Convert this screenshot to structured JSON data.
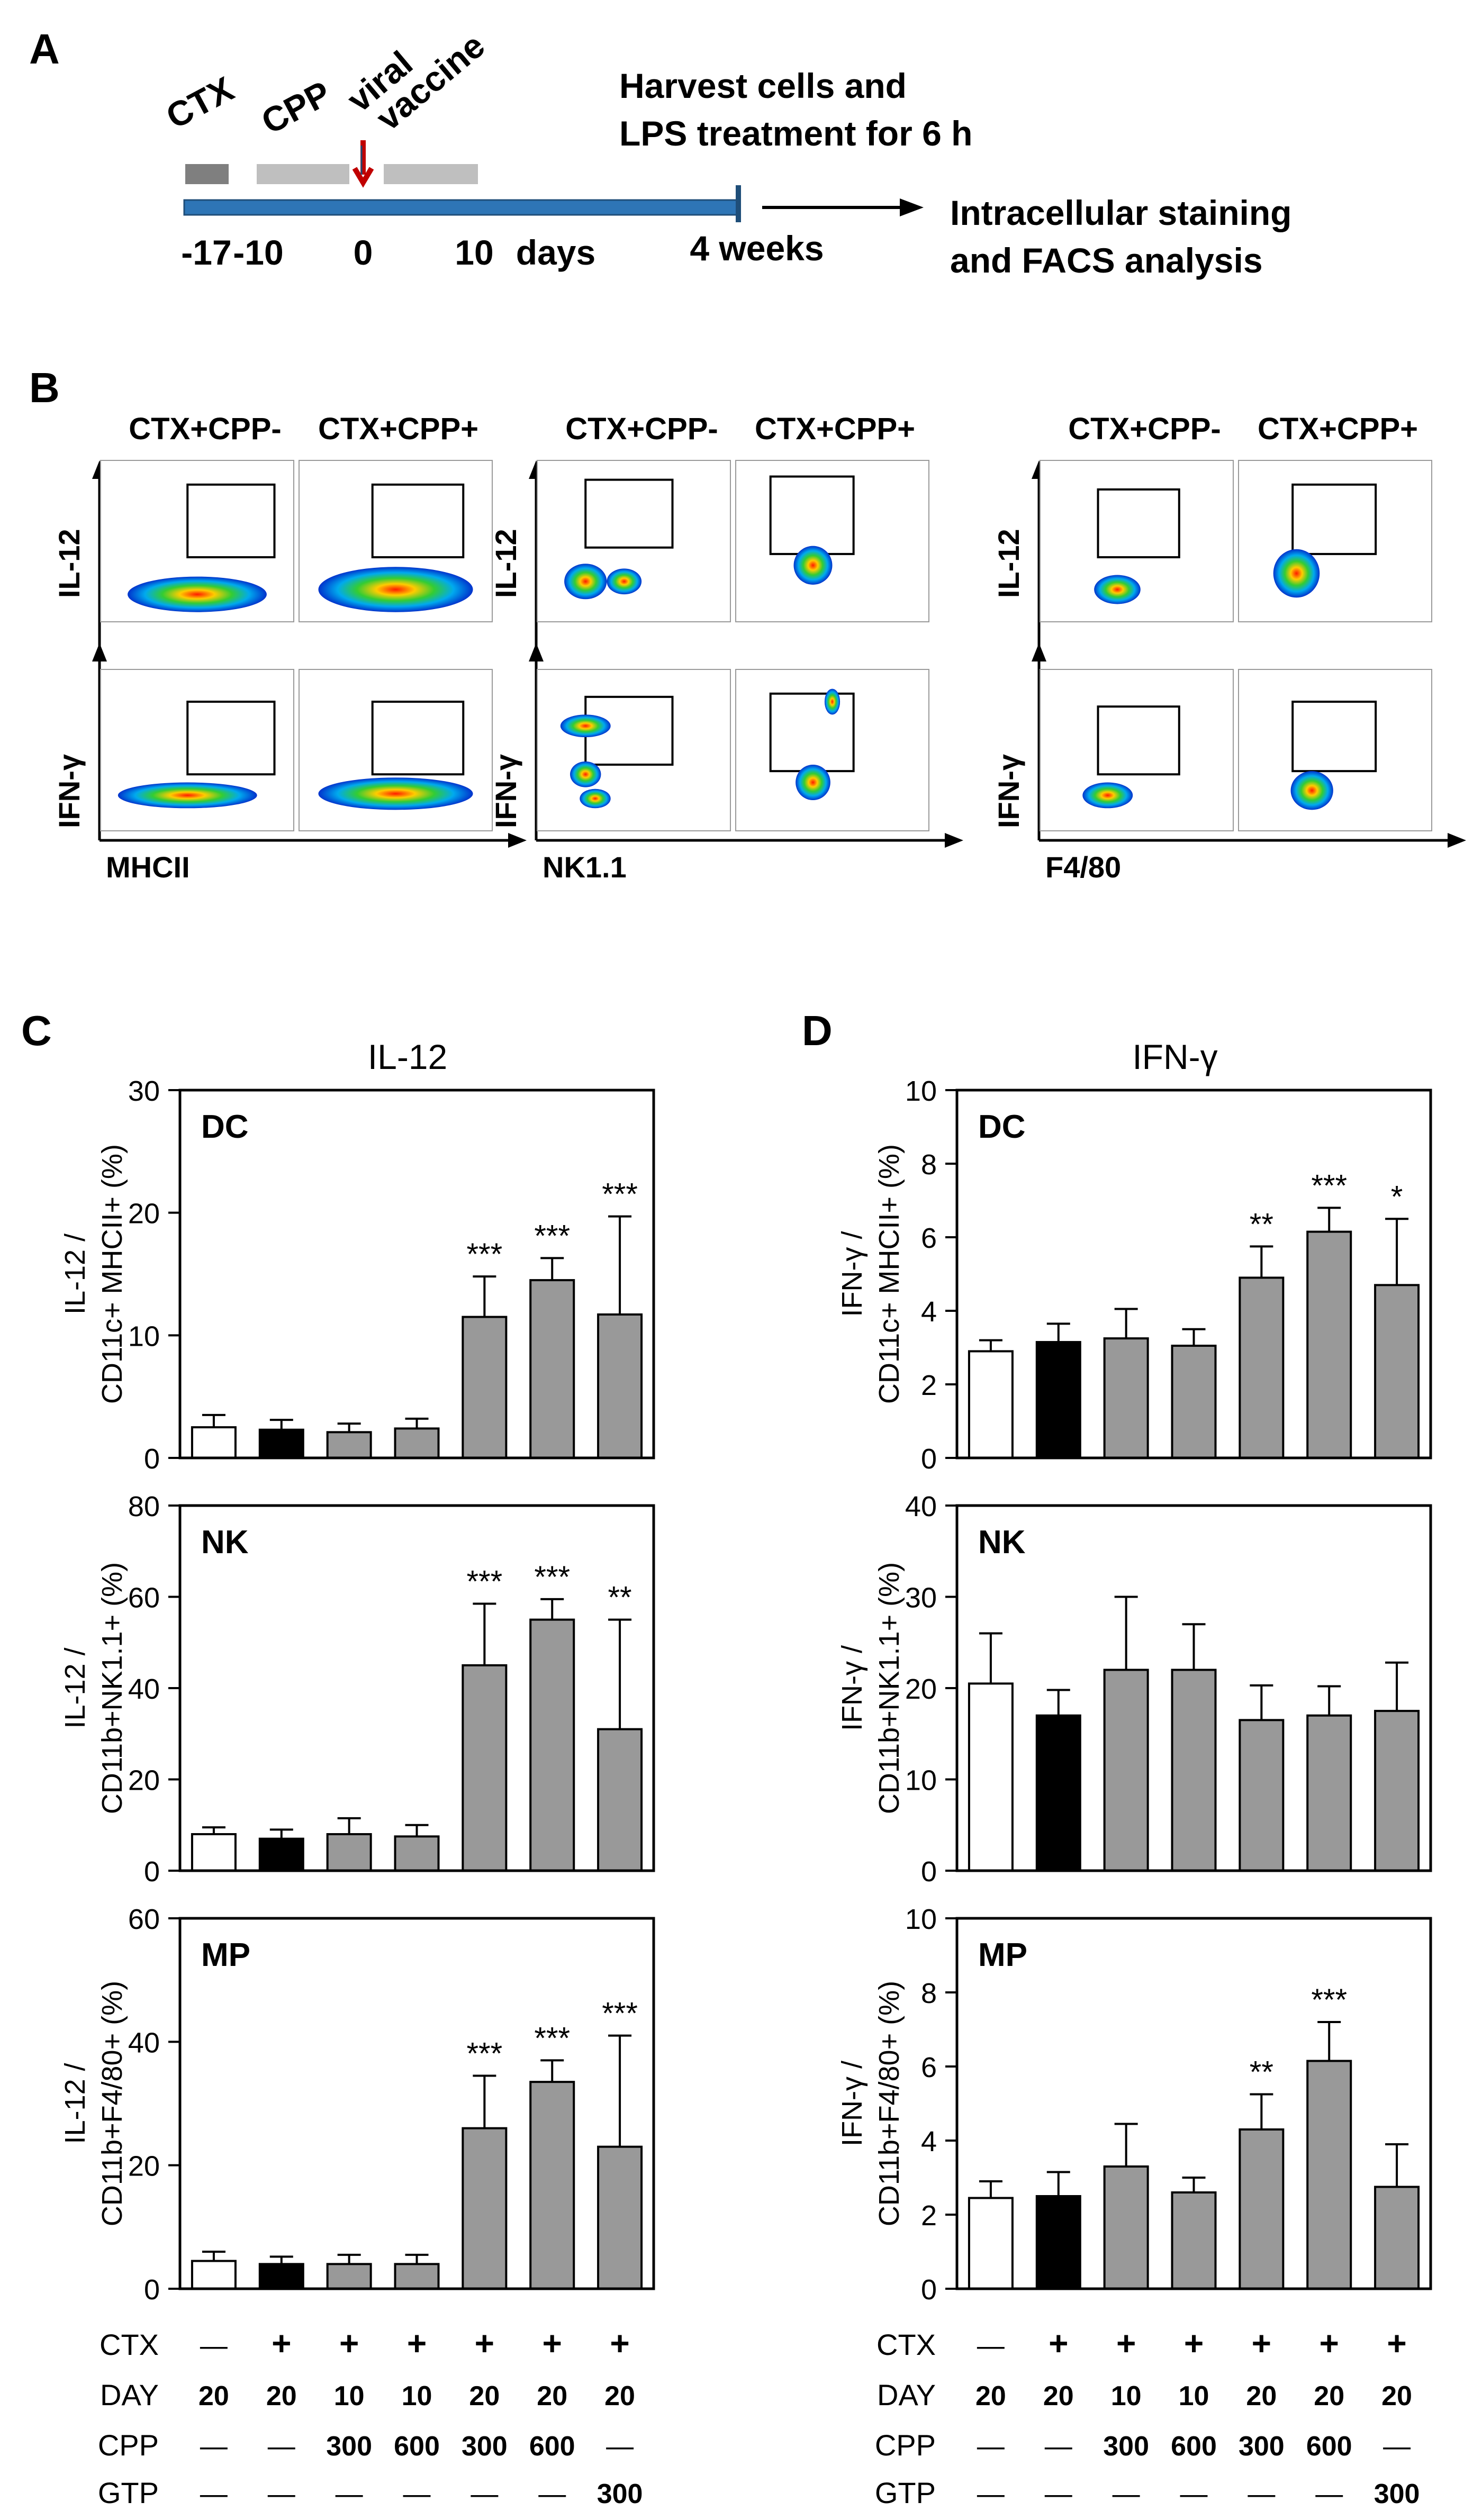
{
  "panel_a": {
    "letter": "A",
    "labels": {
      "ctx": "CTX",
      "cpp": "CPP",
      "viral": "viral",
      "vaccine": "vaccine"
    },
    "ticks": [
      "-17",
      "-10",
      "0",
      "10",
      "days",
      "4 weeks"
    ],
    "harvest_lines": [
      "Harvest cells and",
      "LPS treatment for 6 h"
    ],
    "analysis_lines": [
      "Intracellular staining",
      "and FACS analysis"
    ],
    "colors": {
      "ctx_bar": "#7f7f7f",
      "cpp_bar": "#bfbfbf",
      "timeline": "#2e75b6",
      "arrow": "#c00000"
    }
  },
  "panel_b": {
    "letter": "B",
    "groups": [
      {
        "cond_left": "CTX+CPP-",
        "cond_right": "CTX+CPP+",
        "y_top": "IL-12",
        "y_bottom": "IFN-γ",
        "x_label": "MHCII"
      },
      {
        "cond_left": "CTX+CPP-",
        "cond_right": "CTX+CPP+",
        "y_top": "IL-12",
        "y_bottom": "IFN-γ",
        "x_label": "NK1.1"
      },
      {
        "cond_left": "CTX+CPP-",
        "cond_right": "CTX+CPP+",
        "y_top": "IL-12",
        "y_bottom": "IFN-γ",
        "x_label": "F4/80"
      }
    ]
  },
  "panel_c": {
    "letter": "C",
    "title": "IL-12"
  },
  "panel_d": {
    "letter": "D",
    "title": "IFN-γ"
  },
  "chart_data": [
    {
      "id": "C-DC",
      "type": "bar",
      "panel_label": "DC",
      "ylabel_lines": [
        "IL-12 /",
        "CD11c+ MHCII+ (%)"
      ],
      "ylim": [
        0,
        30
      ],
      "yticks": [
        "0",
        "10",
        "20",
        "30"
      ],
      "values": [
        2.5,
        2.3,
        2.1,
        2.4,
        11.5,
        14.5,
        11.7
      ],
      "errors": [
        1.0,
        0.8,
        0.7,
        0.8,
        3.3,
        1.8,
        8.0
      ],
      "sig": [
        "",
        "",
        "",
        "",
        "***",
        "***",
        "***"
      ]
    },
    {
      "id": "C-NK",
      "type": "bar",
      "panel_label": "NK",
      "ylabel_lines": [
        "IL-12 /",
        "CD11b+NK1.1+ (%)"
      ],
      "ylim": [
        0,
        80
      ],
      "yticks": [
        "0",
        "20",
        "40",
        "60",
        "80"
      ],
      "values": [
        8,
        7,
        8,
        7.5,
        45,
        55,
        31
      ],
      "errors": [
        1.5,
        2,
        3.5,
        2.5,
        13.5,
        4.5,
        24
      ],
      "sig": [
        "",
        "",
        "",
        "",
        "***",
        "***",
        "**"
      ]
    },
    {
      "id": "C-MP",
      "type": "bar",
      "panel_label": "MP",
      "ylabel_lines": [
        "IL-12 /",
        "CD11b+F4/80+ (%)"
      ],
      "ylim": [
        0,
        60
      ],
      "yticks": [
        "0",
        "20",
        "40",
        "60"
      ],
      "values": [
        4.5,
        4,
        4,
        4,
        26,
        33.5,
        23
      ],
      "errors": [
        1.5,
        1.2,
        1.5,
        1.5,
        8.5,
        3.5,
        18
      ],
      "sig": [
        "",
        "",
        "",
        "",
        "***",
        "***",
        "***"
      ]
    },
    {
      "id": "D-DC",
      "type": "bar",
      "panel_label": "DC",
      "ylabel_lines": [
        "IFN-γ /",
        "CD11c+ MHCII+ (%)"
      ],
      "ylim": [
        0,
        10
      ],
      "yticks": [
        "0",
        "2",
        "4",
        "6",
        "8",
        "10"
      ],
      "values": [
        2.9,
        3.15,
        3.25,
        3.05,
        4.9,
        6.15,
        4.7
      ],
      "errors": [
        0.3,
        0.5,
        0.8,
        0.45,
        0.85,
        0.65,
        1.8
      ],
      "sig": [
        "",
        "",
        "",
        "",
        "**",
        "***",
        "*"
      ]
    },
    {
      "id": "D-NK",
      "type": "bar",
      "panel_label": "NK",
      "ylabel_lines": [
        "IFN-γ /",
        "CD11b+NK1.1+ (%)"
      ],
      "ylim": [
        0,
        40
      ],
      "yticks": [
        "0",
        "10",
        "20",
        "30",
        "40"
      ],
      "values": [
        20.5,
        17,
        22,
        22,
        16.5,
        17,
        17.5
      ],
      "errors": [
        5.5,
        2.8,
        8,
        5,
        3.8,
        3.2,
        5.3
      ],
      "sig": [
        "",
        "",
        "",
        "",
        "",
        "",
        ""
      ]
    },
    {
      "id": "D-MP",
      "type": "bar",
      "panel_label": "MP",
      "ylabel_lines": [
        "IFN-γ /",
        "CD11b+F4/80+ (%)"
      ],
      "ylim": [
        0,
        10
      ],
      "yticks": [
        "0",
        "2",
        "4",
        "6",
        "8",
        "10"
      ],
      "values": [
        2.45,
        2.5,
        3.3,
        2.6,
        4.3,
        6.15,
        2.75
      ],
      "errors": [
        0.45,
        0.65,
        1.15,
        0.4,
        0.95,
        1.05,
        1.15
      ],
      "sig": [
        "",
        "",
        "",
        "",
        "**",
        "***",
        ""
      ]
    }
  ],
  "bar_colors": [
    "#ffffff",
    "#000000",
    "#999999",
    "#999999",
    "#999999",
    "#999999",
    "#999999"
  ],
  "conditions": {
    "rows": [
      {
        "label": "CTX",
        "values": [
          "—",
          "+",
          "+",
          "+",
          "+",
          "+",
          "+"
        ]
      },
      {
        "label": "DAY",
        "values": [
          "20",
          "20",
          "10",
          "10",
          "20",
          "20",
          "20"
        ]
      },
      {
        "label": "CPP",
        "values": [
          "—",
          "—",
          "300",
          "600",
          "300",
          "600",
          "—"
        ]
      },
      {
        "label": "GTP",
        "values": [
          "—",
          "—",
          "—",
          "—",
          "—",
          "—",
          "300"
        ]
      }
    ]
  }
}
